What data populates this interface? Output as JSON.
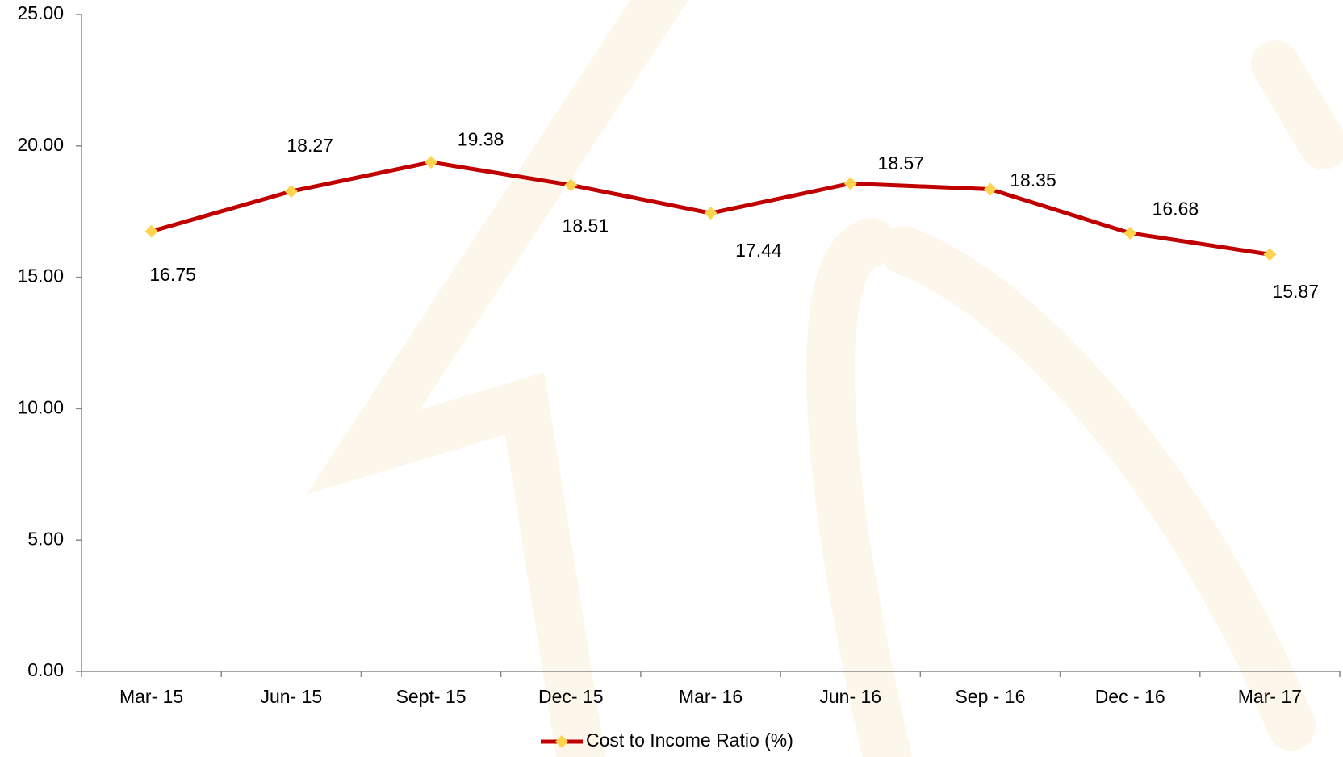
{
  "chart_data": {
    "type": "line",
    "categories": [
      "Mar- 15",
      "Jun- 15",
      "Sept- 15",
      "Dec- 15",
      "Mar- 16",
      "Jun- 16",
      "Sep - 16",
      "Dec - 16",
      "Mar- 17"
    ],
    "series": [
      {
        "name": "Cost to Income Ratio (%)",
        "color": "#c00000",
        "marker_color": "#ffd34e",
        "values": [
          16.75,
          18.27,
          19.38,
          18.51,
          17.44,
          18.57,
          18.35,
          16.68,
          15.87
        ]
      }
    ],
    "ylim": [
      0,
      25
    ],
    "yticks": [
      {
        "value": 0,
        "label": "0.00"
      },
      {
        "value": 5,
        "label": "5.00"
      },
      {
        "value": 10,
        "label": "10.00"
      },
      {
        "value": 15,
        "label": "15.00"
      },
      {
        "value": 20,
        "label": "20.00"
      },
      {
        "value": 25,
        "label": "25.00"
      }
    ],
    "legend": "bottom"
  }
}
